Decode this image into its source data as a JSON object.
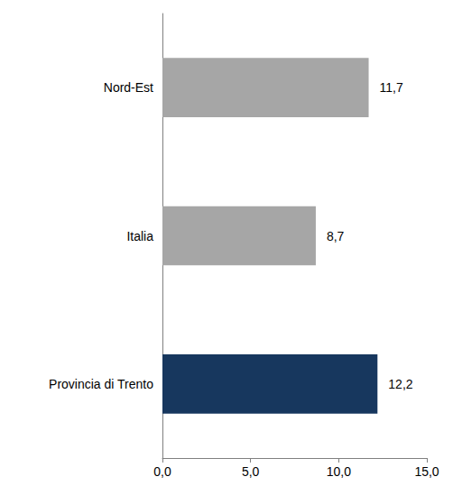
{
  "chart_data": {
    "type": "bar",
    "orientation": "horizontal",
    "categories": [
      "Nord-Est",
      "Italia",
      "Provincia di Trento"
    ],
    "values": [
      11.7,
      8.7,
      12.2
    ],
    "value_labels": [
      "11,7",
      "8,7",
      "12,2"
    ],
    "colors": [
      "#a6a6a6",
      "#a6a6a6",
      "#17375e"
    ],
    "xlim": [
      0,
      15
    ],
    "xticks": [
      {
        "value": 0,
        "label": "0,0"
      },
      {
        "value": 5,
        "label": "5,0"
      },
      {
        "value": 10,
        "label": "10,0"
      },
      {
        "value": 15,
        "label": "15,0"
      }
    ],
    "grid": false,
    "data_labels": true
  }
}
